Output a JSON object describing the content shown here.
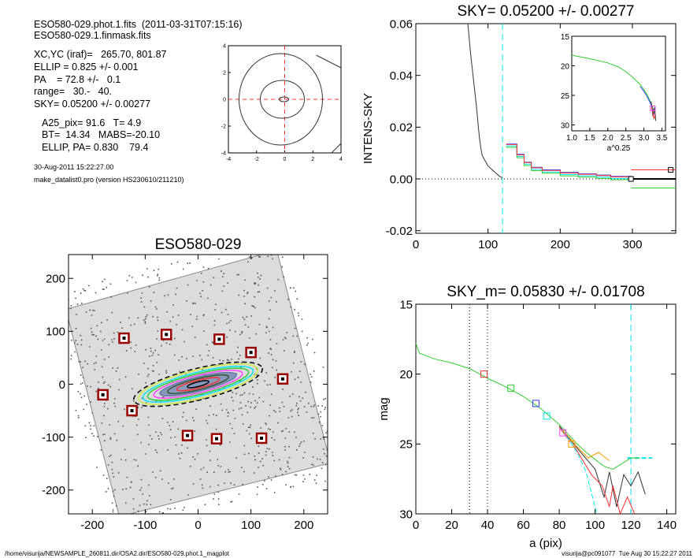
{
  "info": {
    "line1": "ESO580-029.phot.1.fits  (2011-03-31T07:15:16)",
    "line2": "ESO580-029.1.finmask.fits",
    "xcyc": "XC,YC (iraf)=   265.70, 801.87",
    "ellip": "ELLIP = 0.825 +/- 0.001",
    "pa": "PA    = 72.8 +/-   0.1",
    "range": "range=   30.-   40.",
    "sky": "SKY= 0.05200 +/- 0.00277",
    "a25": "A25_pix= 91.6   T= 4.9",
    "bt": "BT=  14.34   MABS=-20.10",
    "ellip_pa": "ELLIP, PA= 0.830    79.4",
    "date": "30-Aug-2011 15:22:27.00",
    "program": "make_datalist0.pro (version HS230610/211210)"
  },
  "footer": {
    "path": "/home/visurija/NEWSAMPLE_260811.dir/OSA2.dir/ESO580-029.phot.1_magplot",
    "user": "visurija@pc091077  Tue Aug 30 15:22:27 2011"
  },
  "colors": {
    "cyan": "#00e5ee",
    "red": "#ff3030",
    "green": "#33cc33",
    "blue": "#3344ff",
    "magenta": "#ff44ff",
    "orange": "#ff9900",
    "box": "#990000"
  },
  "chart_data": [
    {
      "id": "contour",
      "type": "contour",
      "title": "",
      "xlim": [
        -4,
        4
      ],
      "ylim": [
        -4,
        4
      ],
      "x_ticks": [
        "-4",
        "-2",
        "0",
        "2",
        "4"
      ],
      "y_ticks": [
        "-4",
        "-2",
        "0",
        "2",
        "4"
      ]
    },
    {
      "id": "sky",
      "type": "line",
      "title": "SKY= 0.05200 +/- 0.00277",
      "xlabel": "",
      "ylabel": "INTENS-SKY",
      "xlim": [
        0,
        360
      ],
      "ylim": [
        -0.021,
        0.06
      ],
      "x_ticks": [
        "0",
        "100",
        "200",
        "300"
      ],
      "y_ticks": [
        "-0.02",
        "0.00",
        "0.02",
        "0.04",
        "0.06"
      ],
      "x_tick_values": [
        0,
        100,
        200,
        300
      ],
      "y_tick_values": [
        -0.02,
        0.0,
        0.02,
        0.04,
        0.06
      ],
      "profile_x": [
        72,
        76,
        80,
        84,
        86,
        88,
        90,
        92,
        96,
        100,
        104,
        108,
        112,
        116,
        120
      ],
      "profile_y": [
        0.06,
        0.048,
        0.038,
        0.028,
        0.022,
        0.016,
        0.012,
        0.009,
        0.007,
        0.005,
        0.004,
        0.003,
        0.002,
        0.001,
        0.0005
      ],
      "marker_x": 298,
      "marker_y": 0.0,
      "marker_right_x": 353,
      "marker_right_y": 0.0035
    },
    {
      "id": "inset",
      "type": "line",
      "title": "",
      "xlabel": "a^0.25",
      "ylabel": "",
      "xlim": [
        1.0,
        3.6
      ],
      "ylim": [
        15,
        31
      ],
      "x_ticks": [
        "1.0",
        "1.5",
        "2.0",
        "2.5",
        "3.0",
        "3.5"
      ],
      "y_ticks": [
        "15",
        "20",
        "25",
        "30"
      ],
      "x_tick_values": [
        1.0,
        1.5,
        2.0,
        2.5,
        3.0,
        3.5
      ],
      "y_tick_values": [
        15,
        20,
        25,
        30
      ],
      "x": [
        1.0,
        1.5,
        2.0,
        2.3,
        2.5,
        2.7,
        2.9,
        3.0,
        3.1,
        3.2,
        3.3
      ],
      "y": [
        18.2,
        18.8,
        19.5,
        20.2,
        21.0,
        22.0,
        23.2,
        24.0,
        25.0,
        26.3,
        28.0
      ]
    },
    {
      "id": "image",
      "type": "scatter",
      "title": "ESO580-029",
      "xlim": [
        -245,
        245
      ],
      "ylim": [
        -245,
        245
      ],
      "x_ticks": [
        "-200",
        "-100",
        "0",
        "100",
        "200"
      ],
      "y_ticks": [
        "-200",
        "-100",
        "0",
        "100",
        "200"
      ],
      "x_tick_values": [
        -200,
        -100,
        0,
        100,
        200
      ],
      "y_tick_values": [
        -200,
        -100,
        0,
        100,
        200
      ],
      "stars_x": [
        -140,
        -60,
        40,
        100,
        160,
        -180,
        -125,
        -20,
        35,
        120
      ],
      "stars_y": [
        87,
        94,
        85,
        60,
        10,
        -20,
        -50,
        -97,
        -103,
        -102
      ]
    },
    {
      "id": "mag",
      "type": "line",
      "title": "SKY_m=  0.05830 +/- 0.01708",
      "xlabel": "a (pix)",
      "ylabel": "mag",
      "xlim": [
        0,
        145
      ],
      "ylim": [
        15,
        30
      ],
      "x_ticks": [
        "0",
        "20",
        "40",
        "60",
        "80",
        "100",
        "120",
        "140"
      ],
      "y_ticks": [
        "15",
        "20",
        "25",
        "30"
      ],
      "x_tick_values": [
        0,
        20,
        40,
        60,
        80,
        100,
        120,
        140
      ],
      "y_tick_values": [
        15,
        20,
        25,
        30
      ],
      "x": [
        0,
        2,
        10,
        20,
        30,
        40,
        50,
        60,
        70,
        80,
        85,
        90,
        95,
        100,
        105,
        110,
        115,
        120,
        125
      ],
      "y": [
        17.8,
        18.5,
        18.9,
        19.2,
        19.6,
        20.3,
        20.9,
        21.6,
        22.5,
        23.6,
        24.3,
        25.0,
        25.6,
        26.1,
        26.6,
        26.8,
        26.4,
        26.0,
        26.0
      ],
      "boxes": [
        {
          "x": 38,
          "y": 20.0,
          "color": "red"
        },
        {
          "x": 53,
          "y": 21.0,
          "color": "green"
        },
        {
          "x": 67,
          "y": 22.1,
          "color": "blue"
        },
        {
          "x": 73,
          "y": 23.0,
          "color": "cyan"
        },
        {
          "x": 82,
          "y": 24.2,
          "color": "magenta"
        },
        {
          "x": 87,
          "y": 25.0,
          "color": "orange"
        }
      ]
    }
  ]
}
